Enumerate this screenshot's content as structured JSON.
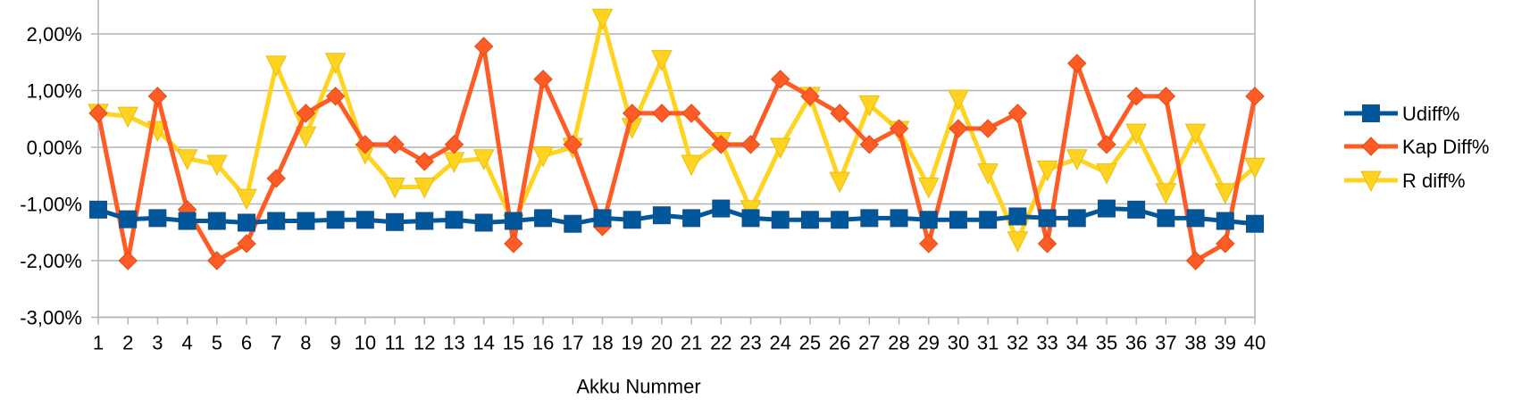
{
  "chart_data": {
    "type": "line",
    "title": "",
    "xlabel": "Akku Nummer",
    "ylabel": "",
    "categories": [
      "1",
      "2",
      "3",
      "4",
      "5",
      "6",
      "7",
      "8",
      "9",
      "10",
      "11",
      "12",
      "13",
      "14",
      "15",
      "16",
      "17",
      "18",
      "19",
      "20",
      "21",
      "22",
      "23",
      "24",
      "25",
      "26",
      "27",
      "28",
      "29",
      "30",
      "31",
      "32",
      "33",
      "34",
      "35",
      "36",
      "37",
      "38",
      "39",
      "40"
    ],
    "ylim": [
      -3,
      2.4
    ],
    "yticks": [
      -3,
      -2,
      -1,
      0,
      1,
      2
    ],
    "ytick_labels": [
      "-3,00%",
      "-2,00%",
      "-1,00%",
      "0,00%",
      "1,00%",
      "2,00%"
    ],
    "grid": "horizontal",
    "legend": "right",
    "series": [
      {
        "name": "Udiff%",
        "color": "#00579b",
        "marker": "square",
        "values": [
          -1.1,
          -1.27,
          -1.25,
          -1.3,
          -1.3,
          -1.33,
          -1.3,
          -1.3,
          -1.28,
          -1.28,
          -1.32,
          -1.3,
          -1.28,
          -1.33,
          -1.3,
          -1.25,
          -1.35,
          -1.25,
          -1.28,
          -1.2,
          -1.25,
          -1.08,
          -1.25,
          -1.28,
          -1.28,
          -1.28,
          -1.25,
          -1.25,
          -1.28,
          -1.28,
          -1.28,
          -1.22,
          -1.25,
          -1.25,
          -1.08,
          -1.1,
          -1.25,
          -1.25,
          -1.3,
          -1.35
        ]
      },
      {
        "name": "Kap Diff%",
        "color": "#ff5b24",
        "marker": "diamond",
        "values": [
          0.6,
          -2.0,
          0.9,
          -1.1,
          -2.0,
          -1.7,
          -0.55,
          0.6,
          0.9,
          0.05,
          0.05,
          -0.25,
          0.05,
          1.78,
          -1.7,
          1.2,
          0.05,
          -1.4,
          0.6,
          0.6,
          0.6,
          0.05,
          0.05,
          1.2,
          0.9,
          0.6,
          0.05,
          0.33,
          -1.7,
          0.33,
          0.33,
          0.6,
          -1.7,
          1.48,
          0.05,
          0.9,
          0.9,
          -2.0,
          -1.7,
          0.9
        ]
      },
      {
        "name": "R diff%",
        "color": "#ffd320",
        "marker": "triangle-down",
        "values": [
          0.6,
          0.55,
          0.3,
          -0.2,
          -0.3,
          -0.9,
          1.45,
          0.2,
          1.5,
          -0.1,
          -0.7,
          -0.7,
          -0.25,
          -0.2,
          -1.35,
          -0.15,
          0.0,
          2.28,
          0.35,
          1.55,
          -0.3,
          0.1,
          -1.1,
          0.0,
          0.9,
          -0.6,
          0.75,
          0.3,
          -0.7,
          0.85,
          -0.45,
          -1.65,
          -0.4,
          -0.2,
          -0.45,
          0.25,
          -0.8,
          0.25,
          -0.8,
          -0.35
        ]
      }
    ]
  }
}
